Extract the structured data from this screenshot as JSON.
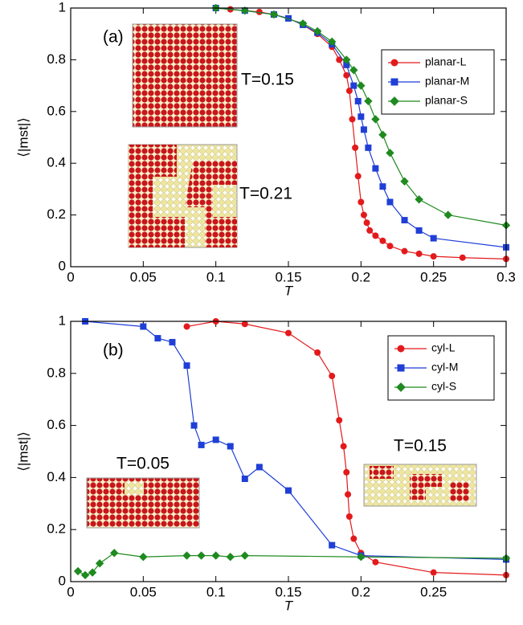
{
  "chart_data": [
    {
      "type": "line",
      "xlabel": "T",
      "ylabel": "⟨|mst|⟩",
      "xlim": [
        0,
        0.3
      ],
      "ylim": [
        0,
        1
      ],
      "xticks": [
        0,
        0.05,
        0.1,
        0.15,
        0.2,
        0.25,
        0.3
      ],
      "yticks": [
        0,
        0.2,
        0.4,
        0.6,
        0.8,
        1
      ],
      "legend": "upper right",
      "annotations": [
        "(a)",
        "T=0.15",
        "T=0.21"
      ],
      "series": [
        {
          "name": "planar-L",
          "color": "#e31a1c",
          "marker": "circle",
          "x": [
            0.1,
            0.11,
            0.12,
            0.13,
            0.14,
            0.15,
            0.16,
            0.17,
            0.18,
            0.185,
            0.19,
            0.192,
            0.194,
            0.196,
            0.198,
            0.2,
            0.202,
            0.204,
            0.206,
            0.21,
            0.215,
            0.22,
            0.23,
            0.24,
            0.25,
            0.27,
            0.3
          ],
          "values": [
            1,
            0.995,
            0.99,
            0.985,
            0.975,
            0.96,
            0.935,
            0.9,
            0.85,
            0.8,
            0.74,
            0.68,
            0.57,
            0.46,
            0.35,
            0.25,
            0.2,
            0.17,
            0.14,
            0.12,
            0.1,
            0.08,
            0.06,
            0.05,
            0.04,
            0.035,
            0.03
          ]
        },
        {
          "name": "planar-M",
          "color": "#1f3fd6",
          "marker": "square",
          "x": [
            0.1,
            0.12,
            0.14,
            0.15,
            0.16,
            0.17,
            0.18,
            0.19,
            0.195,
            0.198,
            0.2,
            0.202,
            0.205,
            0.21,
            0.215,
            0.22,
            0.23,
            0.24,
            0.25,
            0.3
          ],
          "values": [
            1,
            0.99,
            0.975,
            0.96,
            0.935,
            0.905,
            0.86,
            0.78,
            0.7,
            0.64,
            0.58,
            0.53,
            0.46,
            0.38,
            0.31,
            0.25,
            0.18,
            0.14,
            0.11,
            0.075
          ]
        },
        {
          "name": "planar-S",
          "color": "#1f8a1f",
          "marker": "diamond",
          "x": [
            0.1,
            0.12,
            0.14,
            0.16,
            0.17,
            0.18,
            0.19,
            0.195,
            0.2,
            0.205,
            0.21,
            0.215,
            0.22,
            0.23,
            0.24,
            0.26,
            0.3
          ],
          "values": [
            1,
            0.99,
            0.975,
            0.94,
            0.91,
            0.87,
            0.8,
            0.76,
            0.7,
            0.64,
            0.57,
            0.51,
            0.44,
            0.33,
            0.26,
            0.2,
            0.16
          ]
        }
      ]
    },
    {
      "type": "line",
      "xlabel": "T",
      "ylabel": "⟨|mst|⟩",
      "xlim": [
        0,
        0.3
      ],
      "ylim": [
        0,
        1
      ],
      "xticks": [
        0,
        0.05,
        0.1,
        0.15,
        0.2,
        0.25
      ],
      "yticks": [
        0,
        0.2,
        0.4,
        0.6,
        0.8,
        1
      ],
      "legend": "upper right",
      "annotations": [
        "(b)",
        "T=0.05",
        "T=0.15"
      ],
      "series": [
        {
          "name": "cyl-L",
          "color": "#e31a1c",
          "marker": "circle",
          "x": [
            0.08,
            0.1,
            0.12,
            0.15,
            0.17,
            0.18,
            0.185,
            0.188,
            0.19,
            0.191,
            0.192,
            0.195,
            0.2,
            0.21,
            0.25,
            0.3
          ],
          "values": [
            0.98,
            1,
            0.99,
            0.955,
            0.88,
            0.79,
            0.62,
            0.52,
            0.42,
            0.335,
            0.25,
            0.165,
            0.11,
            0.075,
            0.035,
            0.025
          ]
        },
        {
          "name": "cyl-M",
          "color": "#1f3fd6",
          "marker": "square",
          "x": [
            0.01,
            0.05,
            0.06,
            0.07,
            0.08,
            0.085,
            0.09,
            0.1,
            0.11,
            0.12,
            0.13,
            0.15,
            0.18,
            0.2,
            0.3
          ],
          "values": [
            1,
            0.98,
            0.935,
            0.92,
            0.83,
            0.6,
            0.525,
            0.545,
            0.52,
            0.395,
            0.44,
            0.35,
            0.14,
            0.1,
            0.085
          ]
        },
        {
          "name": "cyl-S",
          "color": "#1f8a1f",
          "marker": "diamond",
          "x": [
            0.005,
            0.01,
            0.015,
            0.02,
            0.03,
            0.05,
            0.08,
            0.09,
            0.1,
            0.11,
            0.12,
            0.2,
            0.3
          ],
          "values": [
            0.04,
            0.025,
            0.035,
            0.07,
            0.11,
            0.095,
            0.1,
            0.1,
            0.1,
            0.095,
            0.1,
            0.095,
            0.09
          ]
        }
      ]
    }
  ]
}
